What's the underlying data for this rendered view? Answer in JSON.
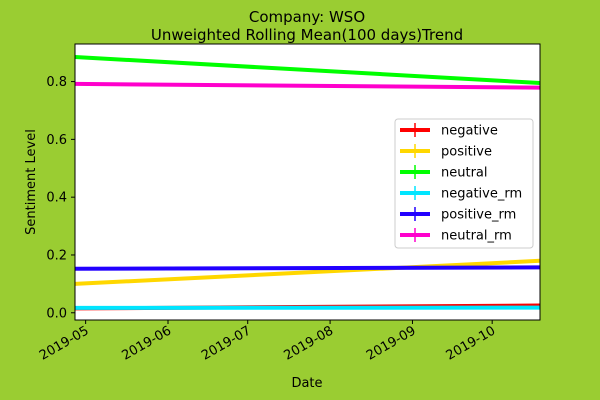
{
  "chart_data": {
    "type": "line",
    "title": "Company: WSO",
    "subtitle": "Unweighted Rolling Mean(100 days)Trend",
    "xlabel": "Date",
    "ylabel": "Sentiment Level",
    "x_tick_labels": [
      "2019-05",
      "2019-06",
      "2019-07",
      "2019-08",
      "2019-09",
      "2019-10"
    ],
    "x_ticks": [
      "2019-05-01",
      "2019-06-01",
      "2019-07-01",
      "2019-08-01",
      "2019-09-01",
      "2019-10-01"
    ],
    "xlim": [
      "2019-04-27",
      "2019-10-19"
    ],
    "ylim": [
      -0.025,
      0.93
    ],
    "y_ticks": [
      0.0,
      0.2,
      0.4,
      0.6,
      0.8
    ],
    "y_tick_labels": [
      "0.0",
      "0.2",
      "0.4",
      "0.6",
      "0.8"
    ],
    "legend_position": "center-right",
    "grid": false,
    "background_color": "#9acd32",
    "series": [
      {
        "name": "negative",
        "color": "#ff0000",
        "x": [
          "2019-04-27",
          "2019-10-19"
        ],
        "y": [
          0.015,
          0.025
        ]
      },
      {
        "name": "positive",
        "color": "#ffd700",
        "x": [
          "2019-04-27",
          "2019-10-19"
        ],
        "y": [
          0.1,
          0.18
        ]
      },
      {
        "name": "neutral",
        "color": "#00ff00",
        "x": [
          "2019-04-27",
          "2019-10-19"
        ],
        "y": [
          0.885,
          0.795
        ]
      },
      {
        "name": "negative_rm",
        "color": "#00e5ff",
        "x": [
          "2019-04-27",
          "2019-10-19"
        ],
        "y": [
          0.017,
          0.018
        ]
      },
      {
        "name": "positive_rm",
        "color": "#2200ff",
        "x": [
          "2019-04-27",
          "2019-10-19"
        ],
        "y": [
          0.152,
          0.157
        ]
      },
      {
        "name": "neutral_rm",
        "color": "#ff00cc",
        "x": [
          "2019-04-27",
          "2019-10-19"
        ],
        "y": [
          0.792,
          0.779
        ]
      }
    ]
  }
}
